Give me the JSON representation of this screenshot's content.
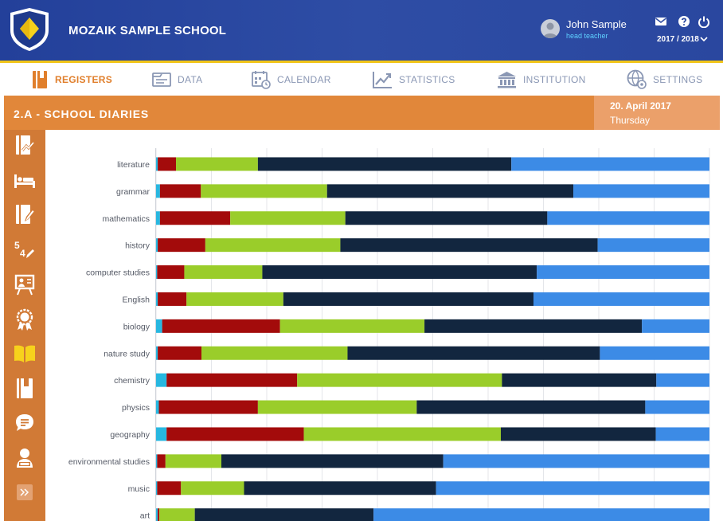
{
  "header": {
    "school_name": "MOZAIK SAMPLE SCHOOL",
    "user_name": "John Sample",
    "user_role": "head teacher",
    "school_year": "2017 / 2018",
    "icons": [
      "mail-icon",
      "help-icon",
      "power-icon"
    ]
  },
  "nav": {
    "items": [
      {
        "label": "REGISTERS",
        "icon": "registers-icon",
        "active": true
      },
      {
        "label": "DATA",
        "icon": "data-icon",
        "active": false
      },
      {
        "label": "CALENDAR",
        "icon": "calendar-icon",
        "active": false
      },
      {
        "label": "STATISTICS",
        "icon": "statistics-icon",
        "active": false
      },
      {
        "label": "INSTITUTION",
        "icon": "institution-icon",
        "active": false
      },
      {
        "label": "SETTINGS",
        "icon": "settings-icon",
        "active": false
      }
    ]
  },
  "page": {
    "title": "2.A - SCHOOL DIARIES",
    "date": "20. April 2017",
    "weekday": "Thursday"
  },
  "sidebar": {
    "items": [
      "diary-chart-icon",
      "bed-icon",
      "book-edit-icon",
      "grades-icon",
      "whiteboard-icon",
      "award-icon",
      "open-book-icon",
      "notebook-icon",
      "chat-icon",
      "student-icon"
    ],
    "expand_icon": "expand-icon"
  },
  "colors": {
    "cyan": "#27b7e0",
    "red": "#a30b0b",
    "green": "#9acd2a",
    "navy": "#12263f",
    "blue": "#3c8be6"
  },
  "chart_data": {
    "type": "bar",
    "orientation": "horizontal",
    "stacked": true,
    "normalized": true,
    "title": "",
    "xlabel": "",
    "ylabel": "",
    "xlim": [
      0,
      100
    ],
    "grid": true,
    "legend": "none",
    "categories": [
      "literature",
      "grammar",
      "mathematics",
      "history",
      "computer studies",
      "English",
      "biology",
      "nature study",
      "chemistry",
      "physics",
      "geography",
      "environmental studies",
      "music",
      "art"
    ],
    "series": [
      {
        "name": "series-1",
        "color": "#27b7e0",
        "values": [
          0.3,
          0.7,
          0.7,
          0.3,
          0.2,
          0.3,
          1.1,
          0.3,
          1.9,
          0.5,
          1.9,
          0.2,
          0.2,
          0.3
        ]
      },
      {
        "name": "series-2",
        "color": "#a30b0b",
        "values": [
          3.3,
          7.4,
          12.7,
          8.6,
          4.9,
          5.2,
          21.3,
          7.9,
          23.6,
          17.9,
          24.8,
          1.5,
          4.3,
          0.3
        ]
      },
      {
        "name": "series-3",
        "color": "#9acd2a",
        "values": [
          14.8,
          22.8,
          20.8,
          24.4,
          14.1,
          17.5,
          26.1,
          26.4,
          37.0,
          28.7,
          35.6,
          10.1,
          11.4,
          6.4
        ]
      },
      {
        "name": "series-4",
        "color": "#12263f",
        "values": [
          45.8,
          44.5,
          36.5,
          46.5,
          49.6,
          45.2,
          39.3,
          45.6,
          27.9,
          41.3,
          28.0,
          40.1,
          34.7,
          32.3
        ]
      },
      {
        "name": "series-5",
        "color": "#3c8be6",
        "values": [
          35.8,
          24.6,
          29.3,
          20.2,
          31.2,
          31.8,
          12.2,
          19.8,
          9.6,
          11.6,
          9.7,
          48.1,
          49.4,
          60.7
        ]
      }
    ]
  }
}
